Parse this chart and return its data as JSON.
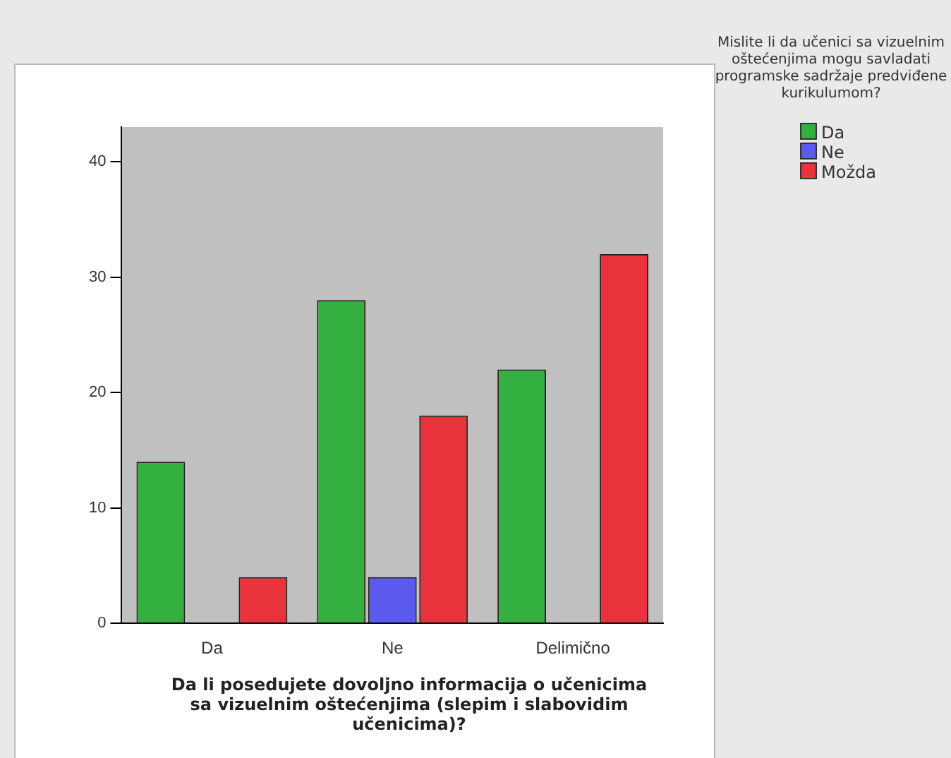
{
  "chart_data": {
    "type": "bar",
    "xlabel": "Da li posedujete dovoljno informacija o učenicima sa vizuelnim oštećenjima (slepim i slabovidim učenicima)?",
    "legend_title": "Mislite li da učenici sa vizuelnim oštećenjima mogu savladati programske sadržaje predviđene kurikulumom?",
    "categories": [
      "Da",
      "Ne",
      "Delimično"
    ],
    "series": [
      {
        "name": "Da",
        "color": "#33b040",
        "values": [
          14,
          28,
          22
        ]
      },
      {
        "name": "Ne",
        "color": "#5a5aef",
        "values": [
          null,
          4,
          null
        ]
      },
      {
        "name": "Možda",
        "color": "#e8323c",
        "values": [
          4,
          18,
          32
        ]
      }
    ],
    "ylim": [
      0,
      43
    ],
    "yticks": [
      0,
      10,
      20,
      30,
      40
    ],
    "grid": false,
    "legend": "top right"
  }
}
